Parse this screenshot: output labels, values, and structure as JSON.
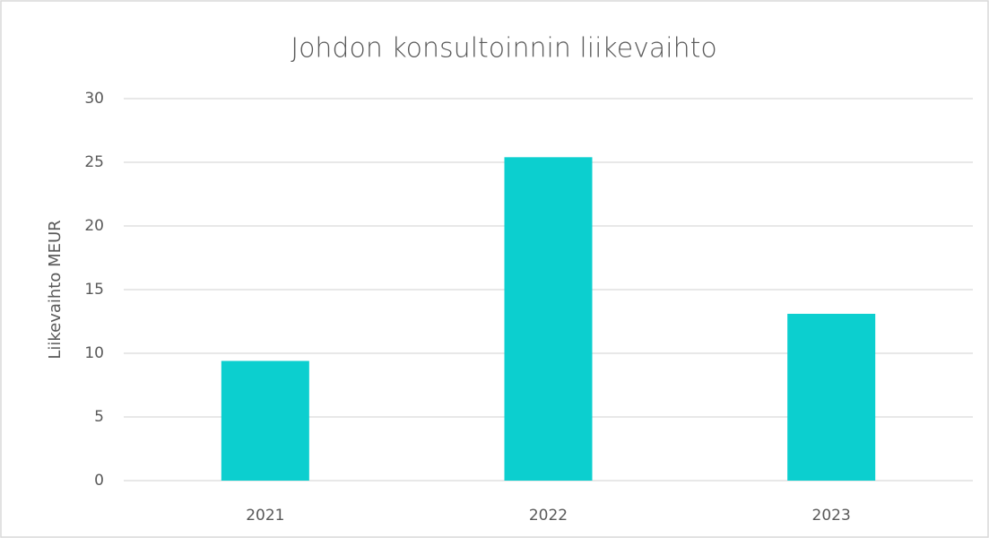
{
  "chart_data": {
    "type": "bar",
    "title": "Johdon konsultoinnin liikevaihto",
    "y_label": "Liikevaihto MEUR",
    "categories": [
      "2021",
      "2022",
      "2023"
    ],
    "values": [
      9.4,
      25.4,
      13.1
    ],
    "color": "#0ccfcf",
    "ylim": [
      0,
      30
    ],
    "yticks": [
      0,
      5,
      10,
      15,
      20,
      25,
      30
    ],
    "grid": true
  }
}
